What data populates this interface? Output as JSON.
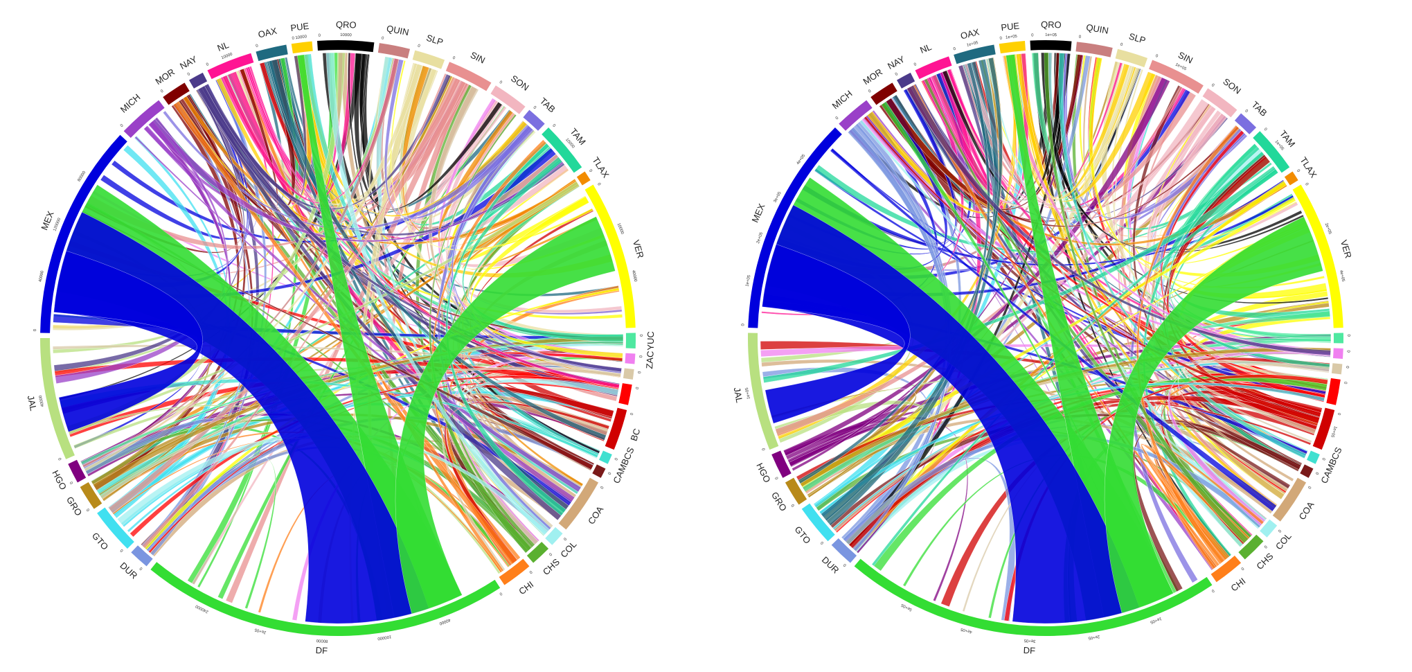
{
  "diagrams": [
    {
      "name": "left",
      "segments": [
        {
          "label": "QRO",
          "color": "#000000",
          "start": 0,
          "ticks": [
            "0",
            "10000"
          ]
        },
        {
          "label": "QUIN",
          "color": "#c97f7f",
          "start": 0,
          "ticks": [
            "0"
          ]
        },
        {
          "label": "SLP",
          "color": "#e8dfa0",
          "start": 0,
          "ticks": [
            "0"
          ]
        },
        {
          "label": "SIN",
          "color": "#e89090",
          "start": 0,
          "ticks": [
            "0"
          ]
        },
        {
          "label": "SON",
          "color": "#f2b6c0",
          "start": 0,
          "ticks": [
            "0"
          ]
        },
        {
          "label": "TAB",
          "color": "#7b6fe0",
          "start": 0,
          "ticks": [
            "0"
          ]
        },
        {
          "label": "TAM",
          "color": "#22d89a",
          "start": 0,
          "ticks": [
            "0",
            "10000"
          ]
        },
        {
          "label": "TLAX",
          "color": "#f28c00",
          "start": 0,
          "ticks": [
            "0"
          ]
        },
        {
          "label": "VER",
          "color": "#ffff00",
          "start": 0,
          "ticks": [
            "0",
            "10000",
            "40000"
          ]
        },
        {
          "label": "YUC",
          "color": "#4ee8a0",
          "start": 0,
          "ticks": [
            "0"
          ]
        },
        {
          "label": "ZAC",
          "color": "#f080f0",
          "start": 0,
          "ticks": [
            "0"
          ]
        },
        {
          "label": "",
          "color": "#d9c9a8",
          "start": 0,
          "ticks": [
            "0"
          ]
        },
        {
          "label": "",
          "color": "#ff0000",
          "start": 0,
          "ticks": [
            "0"
          ]
        },
        {
          "label": "BC",
          "color": "#d00000",
          "start": 0,
          "ticks": [
            "0"
          ]
        },
        {
          "label": "CAMBCS",
          "color": "#40e0d0",
          "start": 0,
          "ticks": [
            "0"
          ]
        },
        {
          "label": "",
          "color": "#7a1a1a",
          "start": 0,
          "ticks": [
            "0"
          ]
        },
        {
          "label": "COA",
          "color": "#d2a878",
          "start": 0,
          "ticks": [
            "0"
          ]
        },
        {
          "label": "COL",
          "color": "#a0f0f0",
          "start": 0,
          "ticks": [
            "0"
          ]
        },
        {
          "label": "CHS",
          "color": "#5ab030",
          "start": 0,
          "ticks": [
            "0"
          ]
        },
        {
          "label": "CHI",
          "color": "#ff7f1a",
          "start": 0,
          "ticks": [
            "0"
          ]
        },
        {
          "label": "DF",
          "color": "#33dd33",
          "start": 0,
          "ticks": [
            "0",
            "40000",
            "100000",
            "80000",
            "2e+05",
            "240000"
          ]
        },
        {
          "label": "DUR",
          "color": "#7a95e0",
          "start": 0,
          "ticks": [
            "0"
          ]
        },
        {
          "label": "GTO",
          "color": "#40e0f0",
          "start": 0,
          "ticks": [
            "0"
          ]
        },
        {
          "label": "GRO",
          "color": "#b88a1a",
          "start": 0,
          "ticks": [
            "0"
          ]
        },
        {
          "label": "HGO",
          "color": "#800080",
          "start": 0,
          "ticks": [
            "0"
          ]
        },
        {
          "label": "JAL",
          "color": "#b8e080",
          "start": 0,
          "ticks": [
            "0",
            "40000"
          ]
        },
        {
          "label": "MEX",
          "color": "#0000dd",
          "start": 0,
          "ticks": [
            "0",
            "40000",
            "120000",
            "80000"
          ]
        },
        {
          "label": "MICH",
          "color": "#9a40c8",
          "start": 0,
          "ticks": [
            "0"
          ]
        },
        {
          "label": "MOR",
          "color": "#800000",
          "start": 0,
          "ticks": [
            "0"
          ]
        },
        {
          "label": "NAY",
          "color": "#4b3a8a",
          "start": 0,
          "ticks": [
            "0"
          ]
        },
        {
          "label": "NL",
          "color": "#ff1493",
          "start": 0,
          "ticks": [
            "0",
            "10000"
          ]
        },
        {
          "label": "OAX",
          "color": "#1f6a80",
          "start": 0,
          "ticks": [
            "0"
          ]
        },
        {
          "label": "PUE",
          "color": "#ffd000",
          "start": 0,
          "ticks": [
            "0",
            "10000"
          ]
        }
      ]
    },
    {
      "name": "right",
      "segments": [
        {
          "label": "QRO",
          "color": "#000000",
          "start": 0,
          "ticks": [
            "0",
            "1e+05"
          ]
        },
        {
          "label": "QUIN",
          "color": "#c97f7f",
          "start": 0,
          "ticks": [
            "0"
          ]
        },
        {
          "label": "SLP",
          "color": "#e8dfa0",
          "start": 0,
          "ticks": [
            "0"
          ]
        },
        {
          "label": "SIN",
          "color": "#e89090",
          "start": 0,
          "ticks": [
            "0",
            "1e+05"
          ]
        },
        {
          "label": "SON",
          "color": "#f2b6c0",
          "start": 0,
          "ticks": [
            "0"
          ]
        },
        {
          "label": "TAB",
          "color": "#7b6fe0",
          "start": 0,
          "ticks": [
            "0"
          ]
        },
        {
          "label": "TAM",
          "color": "#22d89a",
          "start": 0,
          "ticks": [
            "0",
            "1e+05"
          ]
        },
        {
          "label": "TLAX",
          "color": "#f28c00",
          "start": 0,
          "ticks": [
            "0"
          ]
        },
        {
          "label": "VER",
          "color": "#ffff00",
          "start": 0,
          "ticks": [
            "0",
            "2e+05",
            "4e+05"
          ]
        },
        {
          "label": "",
          "color": "#4ee8a0",
          "start": 0,
          "ticks": [
            "0"
          ]
        },
        {
          "label": "",
          "color": "#f080f0",
          "start": 0,
          "ticks": [
            "0"
          ]
        },
        {
          "label": "",
          "color": "#d9c9a8",
          "start": 0,
          "ticks": [
            "0"
          ]
        },
        {
          "label": "",
          "color": "#ff0000",
          "start": 0,
          "ticks": [
            "0"
          ]
        },
        {
          "label": "",
          "color": "#d00000",
          "start": 0,
          "ticks": [
            "0",
            "1e+05"
          ]
        },
        {
          "label": "CAMBCS",
          "color": "#40e0d0",
          "start": 0,
          "ticks": [
            "0"
          ]
        },
        {
          "label": "",
          "color": "#7a1a1a",
          "start": 0,
          "ticks": [
            "0"
          ]
        },
        {
          "label": "COA",
          "color": "#d2a878",
          "start": 0,
          "ticks": [
            "0"
          ]
        },
        {
          "label": "COL",
          "color": "#a0f0f0",
          "start": 0,
          "ticks": [
            "0"
          ]
        },
        {
          "label": "CHS",
          "color": "#5ab030",
          "start": 0,
          "ticks": [
            "0"
          ]
        },
        {
          "label": "CHI",
          "color": "#ff7f1a",
          "start": 0,
          "ticks": [
            "0"
          ]
        },
        {
          "label": "DF",
          "color": "#33dd33",
          "start": 0,
          "ticks": [
            "0",
            "1e+05",
            "2e+05",
            "3e+05",
            "4e+05",
            "5e+05"
          ]
        },
        {
          "label": "DUR",
          "color": "#7a95e0",
          "start": 0,
          "ticks": [
            "0"
          ]
        },
        {
          "label": "GTO",
          "color": "#40e0f0",
          "start": 0,
          "ticks": [
            "0"
          ]
        },
        {
          "label": "GRO",
          "color": "#b88a1a",
          "start": 0,
          "ticks": [
            "0"
          ]
        },
        {
          "label": "HGO",
          "color": "#800080",
          "start": 0,
          "ticks": [
            "0"
          ]
        },
        {
          "label": "JAL",
          "color": "#b8e080",
          "start": 0,
          "ticks": [
            "0",
            "1e+05"
          ]
        },
        {
          "label": "MEX",
          "color": "#0000dd",
          "start": 0,
          "ticks": [
            "0",
            "1e+05",
            "2e+05",
            "3e+05",
            "4e+05"
          ]
        },
        {
          "label": "MICH",
          "color": "#9a40c8",
          "start": 0,
          "ticks": [
            "0"
          ]
        },
        {
          "label": "MOR",
          "color": "#800000",
          "start": 0,
          "ticks": [
            "0"
          ]
        },
        {
          "label": "NAY",
          "color": "#4b3a8a",
          "start": 0,
          "ticks": [
            "0"
          ]
        },
        {
          "label": "NL",
          "color": "#ff1493",
          "start": 0,
          "ticks": [
            "0"
          ]
        },
        {
          "label": "OAX",
          "color": "#1f6a80",
          "start": 0,
          "ticks": [
            "0",
            "1e+05"
          ]
        },
        {
          "label": "PUE",
          "color": "#ffd000",
          "start": 0,
          "ticks": [
            "0",
            "1e+05"
          ]
        }
      ]
    }
  ]
}
